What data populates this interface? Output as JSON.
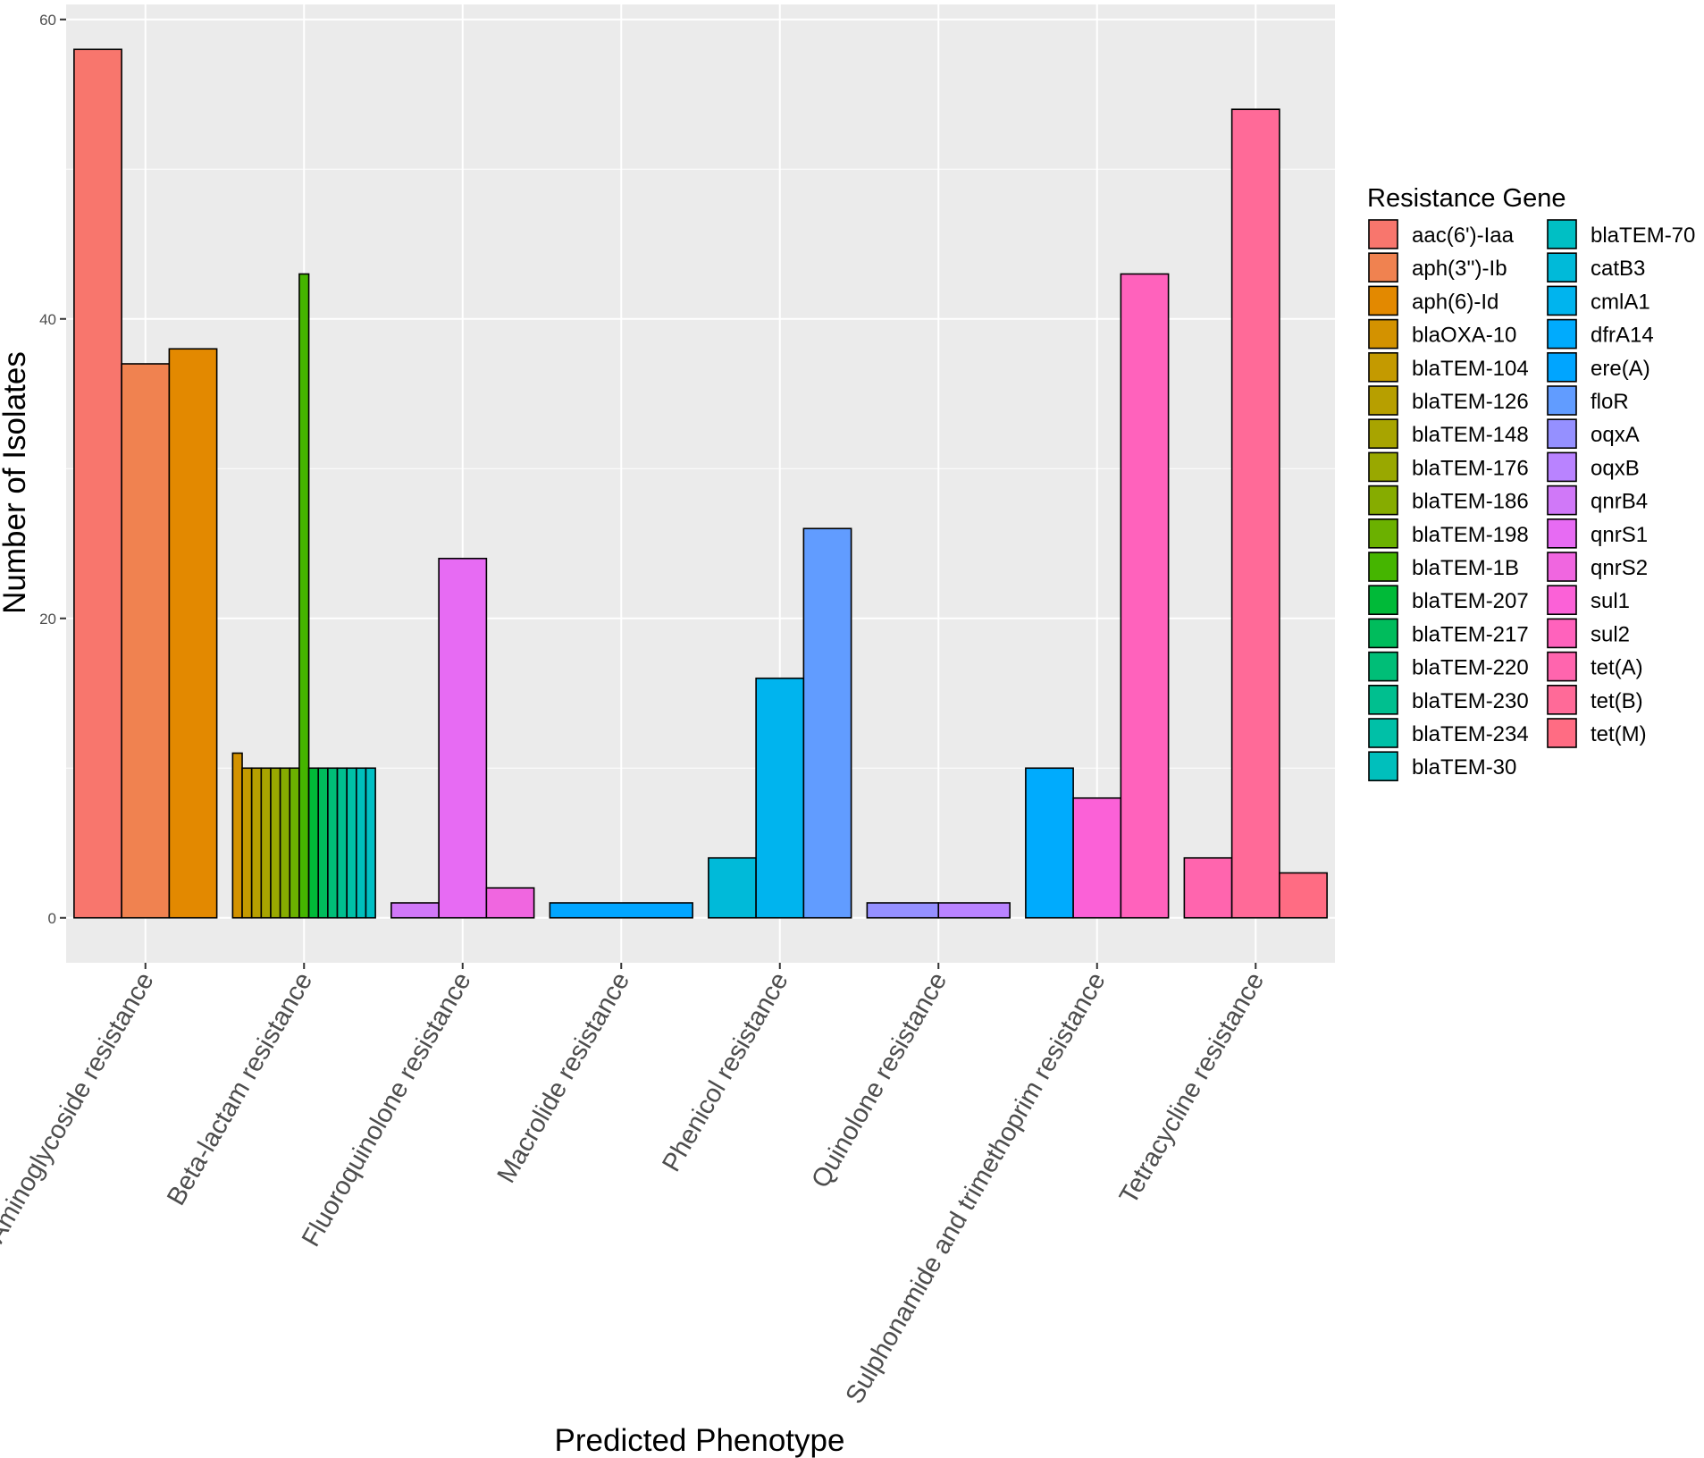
{
  "chart_data": {
    "type": "bar",
    "title": "",
    "xlabel": "Predicted Phenotype",
    "ylabel": "Number of Isolates",
    "ylim": [
      -3,
      61
    ],
    "yticks": [
      0,
      20,
      40,
      60
    ],
    "grid": true,
    "legend_title": "Resistance Gene",
    "legend_position": "right",
    "categories": [
      "Aminoglycoside resistance",
      "Beta-lactam resistance",
      "Fluoroquinolone resistance",
      "Macrolide resistance",
      "Phenicol resistance",
      "Quinolone resistance",
      "Sulphonamide and trimethoprim resistance",
      "Tetracycline resistance"
    ],
    "genes": [
      {
        "name": "aac(6')-Iaa",
        "color": "#F8766D"
      },
      {
        "name": "aph(3'')-Ib",
        "color": "#F08250"
      },
      {
        "name": "aph(6)-Id",
        "color": "#E38900"
      },
      {
        "name": "blaOXA-10",
        "color": "#D39200"
      },
      {
        "name": "blaTEM-104",
        "color": "#C49A00"
      },
      {
        "name": "blaTEM-126",
        "color": "#B79F00"
      },
      {
        "name": "blaTEM-148",
        "color": "#A8A400"
      },
      {
        "name": "blaTEM-176",
        "color": "#99A800"
      },
      {
        "name": "blaTEM-186",
        "color": "#86AC00"
      },
      {
        "name": "blaTEM-198",
        "color": "#6BB100"
      },
      {
        "name": "blaTEM-1B",
        "color": "#45B500"
      },
      {
        "name": "blaTEM-207",
        "color": "#00BA38"
      },
      {
        "name": "blaTEM-217",
        "color": "#00BC5C"
      },
      {
        "name": "blaTEM-220",
        "color": "#00BE77"
      },
      {
        "name": "blaTEM-230",
        "color": "#00BF8F"
      },
      {
        "name": "blaTEM-234",
        "color": "#00C0A7"
      },
      {
        "name": "blaTEM-30",
        "color": "#00BFBC"
      },
      {
        "name": "blaTEM-70",
        "color": "#00BFC4"
      },
      {
        "name": "catB3",
        "color": "#00BAD9"
      },
      {
        "name": "cmlA1",
        "color": "#00B4EE"
      },
      {
        "name": "dfrA14",
        "color": "#00ABFD"
      },
      {
        "name": "ere(A)",
        "color": "#00A5FF"
      },
      {
        "name": "floR",
        "color": "#619CFF"
      },
      {
        "name": "oqxA",
        "color": "#9590FF"
      },
      {
        "name": "oqxB",
        "color": "#B983FF"
      },
      {
        "name": "qnrB4",
        "color": "#D078F8"
      },
      {
        "name": "qnrS1",
        "color": "#E76BF3"
      },
      {
        "name": "qnrS2",
        "color": "#F066E0"
      },
      {
        "name": "sul1",
        "color": "#FB61D7"
      },
      {
        "name": "sul2",
        "color": "#FF62BC"
      },
      {
        "name": "tet(A)",
        "color": "#FF65AE"
      },
      {
        "name": "tet(B)",
        "color": "#FF6A98"
      },
      {
        "name": "tet(M)",
        "color": "#FF6C83"
      }
    ],
    "groups": [
      {
        "category": "Aminoglycoside resistance",
        "bars": [
          {
            "gene": "aac(6')-Iaa",
            "value": 58
          },
          {
            "gene": "aph(3'')-Ib",
            "value": 37
          },
          {
            "gene": "aph(6)-Id",
            "value": 38
          }
        ]
      },
      {
        "category": "Beta-lactam resistance",
        "bars": [
          {
            "gene": "blaOXA-10",
            "value": 11
          },
          {
            "gene": "blaTEM-104",
            "value": 10
          },
          {
            "gene": "blaTEM-126",
            "value": 10
          },
          {
            "gene": "blaTEM-148",
            "value": 10
          },
          {
            "gene": "blaTEM-176",
            "value": 10
          },
          {
            "gene": "blaTEM-186",
            "value": 10
          },
          {
            "gene": "blaTEM-198",
            "value": 10
          },
          {
            "gene": "blaTEM-1B",
            "value": 43
          },
          {
            "gene": "blaTEM-207",
            "value": 10
          },
          {
            "gene": "blaTEM-217",
            "value": 10
          },
          {
            "gene": "blaTEM-220",
            "value": 10
          },
          {
            "gene": "blaTEM-230",
            "value": 10
          },
          {
            "gene": "blaTEM-234",
            "value": 10
          },
          {
            "gene": "blaTEM-30",
            "value": 10
          },
          {
            "gene": "blaTEM-70",
            "value": 10
          }
        ]
      },
      {
        "category": "Fluoroquinolone resistance",
        "bars": [
          {
            "gene": "qnrB4",
            "value": 1
          },
          {
            "gene": "qnrS1",
            "value": 24
          },
          {
            "gene": "qnrS2",
            "value": 2
          }
        ]
      },
      {
        "category": "Macrolide resistance",
        "bars": [
          {
            "gene": "ere(A)",
            "value": 1
          }
        ]
      },
      {
        "category": "Phenicol resistance",
        "bars": [
          {
            "gene": "catB3",
            "value": 4
          },
          {
            "gene": "cmlA1",
            "value": 16
          },
          {
            "gene": "floR",
            "value": 26
          }
        ]
      },
      {
        "category": "Quinolone resistance",
        "bars": [
          {
            "gene": "oqxA",
            "value": 1
          },
          {
            "gene": "oqxB",
            "value": 1
          }
        ]
      },
      {
        "category": "Sulphonamide and trimethoprim resistance",
        "bars": [
          {
            "gene": "dfrA14",
            "value": 10
          },
          {
            "gene": "sul1",
            "value": 8
          },
          {
            "gene": "sul2",
            "value": 43
          }
        ]
      },
      {
        "category": "Tetracycline resistance",
        "bars": [
          {
            "gene": "tet(A)",
            "value": 4
          },
          {
            "gene": "tet(B)",
            "value": 54
          },
          {
            "gene": "tet(M)",
            "value": 3
          }
        ]
      }
    ]
  }
}
